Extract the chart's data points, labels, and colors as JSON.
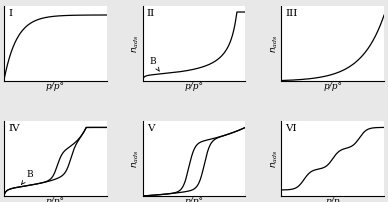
{
  "title_fontsize": 7.5,
  "label_fontsize": 6.5,
  "annotation_fontsize": 6.5,
  "bg_color": "#f0f0f0",
  "line_color": "#000000",
  "panel_titles": [
    "I",
    "II",
    "III",
    "IV",
    "V",
    "VI"
  ],
  "xlabels": [
    "p/p°",
    "p/p°",
    "p/p°",
    "p/p°",
    "p/p°",
    "p/p"
  ],
  "ylabel": "n_ads",
  "figsize": [
    3.88,
    2.02
  ],
  "dpi": 100
}
